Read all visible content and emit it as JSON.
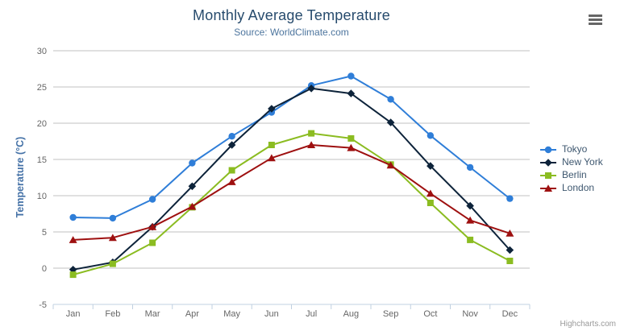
{
  "chart_data": {
    "type": "line",
    "title": "Monthly Average Temperature",
    "subtitle": "Source: WorldClimate.com",
    "xlabel": "",
    "ylabel": "Temperature (°C)",
    "ylim": [
      -5,
      30
    ],
    "y_tick_interval": 5,
    "grid": true,
    "legend_position": "right-middle",
    "categories": [
      "Jan",
      "Feb",
      "Mar",
      "Apr",
      "May",
      "Jun",
      "Jul",
      "Aug",
      "Sep",
      "Oct",
      "Nov",
      "Dec"
    ],
    "series": [
      {
        "name": "Tokyo",
        "marker": "circle",
        "color": "#2f7ed8",
        "values": [
          7.0,
          6.9,
          9.5,
          14.5,
          18.2,
          21.5,
          25.2,
          26.5,
          23.3,
          18.3,
          13.9,
          9.6
        ]
      },
      {
        "name": "New York",
        "marker": "diamond",
        "color": "#0d233a",
        "values": [
          -0.2,
          0.8,
          5.7,
          11.3,
          17.0,
          22.0,
          24.8,
          24.1,
          20.1,
          14.1,
          8.6,
          2.5
        ]
      },
      {
        "name": "Berlin",
        "marker": "square",
        "color": "#8bbc21",
        "values": [
          -0.9,
          0.6,
          3.5,
          8.4,
          13.5,
          17.0,
          18.6,
          17.9,
          14.3,
          9.0,
          3.9,
          1.0
        ]
      },
      {
        "name": "London",
        "marker": "triangle",
        "color": "#9e1010",
        "values": [
          3.9,
          4.2,
          5.7,
          8.5,
          11.9,
          15.2,
          17.0,
          16.6,
          14.2,
          10.3,
          6.6,
          4.8
        ]
      }
    ]
  },
  "header": {
    "context_menu_icon": "hamburger-icon"
  },
  "credits": {
    "label": "Highcharts.com"
  },
  "theme": {
    "background": "#ffffff",
    "title_color": "#274b6d",
    "subtitle_color": "#4d759e",
    "axis_label_color": "#666666",
    "axis_title_color": "#4572a7",
    "legend_text_color": "#3e576f",
    "grid_color": "#c0c0c0",
    "axis_line_color": "#c0d0e0"
  }
}
